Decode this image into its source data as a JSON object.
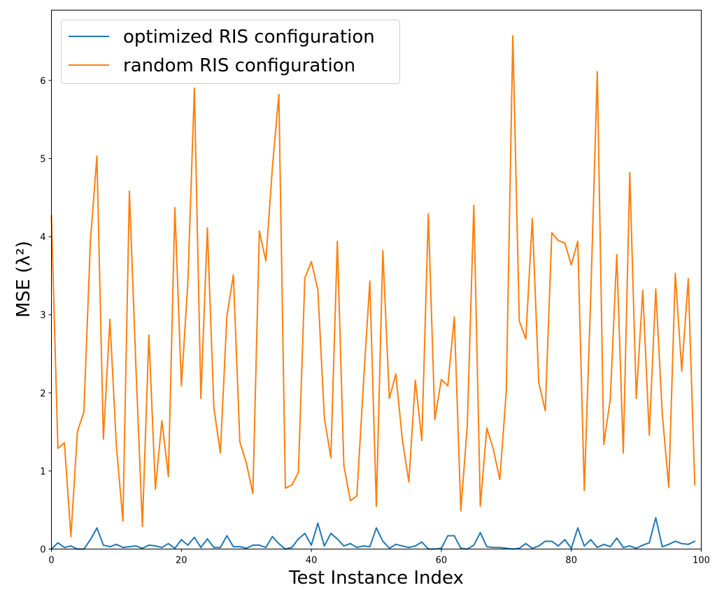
{
  "chart_data": {
    "type": "line",
    "title": "",
    "xlabel": "Test Instance Index",
    "ylabel": "MSE (λ²)",
    "xlim": [
      0,
      100
    ],
    "ylim": [
      0,
      6.9
    ],
    "xticks": [
      0,
      20,
      40,
      60,
      80,
      100
    ],
    "yticks": [
      0,
      1,
      2,
      3,
      4,
      5,
      6
    ],
    "grid": false,
    "legend_position": "top-left",
    "x": [
      0,
      1,
      2,
      3,
      4,
      5,
      6,
      7,
      8,
      9,
      10,
      11,
      12,
      13,
      14,
      15,
      16,
      17,
      18,
      19,
      20,
      21,
      22,
      23,
      24,
      25,
      26,
      27,
      28,
      29,
      30,
      31,
      32,
      33,
      34,
      35,
      36,
      37,
      38,
      39,
      40,
      41,
      42,
      43,
      44,
      45,
      46,
      47,
      48,
      49,
      50,
      51,
      52,
      53,
      54,
      55,
      56,
      57,
      58,
      59,
      60,
      61,
      62,
      63,
      64,
      65,
      66,
      67,
      68,
      69,
      70,
      71,
      72,
      73,
      74,
      75,
      76,
      77,
      78,
      79,
      80,
      81,
      82,
      83,
      84,
      85,
      86,
      87,
      88,
      89,
      90,
      91,
      92,
      93,
      94,
      95,
      96,
      97,
      98,
      99
    ],
    "series": [
      {
        "name": "optimized RIS configuration",
        "color": "#1f77b4",
        "values": [
          0.0,
          0.08,
          0.02,
          0.04,
          0.0,
          0.0,
          0.12,
          0.27,
          0.05,
          0.03,
          0.06,
          0.02,
          0.03,
          0.04,
          0.01,
          0.05,
          0.04,
          0.02,
          0.07,
          0.01,
          0.12,
          0.05,
          0.15,
          0.02,
          0.13,
          0.02,
          0.02,
          0.17,
          0.03,
          0.03,
          0.01,
          0.05,
          0.05,
          0.02,
          0.16,
          0.07,
          0.0,
          0.02,
          0.13,
          0.2,
          0.05,
          0.33,
          0.04,
          0.2,
          0.13,
          0.04,
          0.07,
          0.02,
          0.04,
          0.03,
          0.27,
          0.1,
          0.01,
          0.06,
          0.04,
          0.02,
          0.04,
          0.09,
          0.0,
          0.0,
          0.01,
          0.17,
          0.17,
          0.01,
          0.0,
          0.05,
          0.21,
          0.03,
          0.02,
          0.02,
          0.01,
          0.0,
          0.01,
          0.07,
          0.01,
          0.04,
          0.1,
          0.1,
          0.04,
          0.12,
          0.01,
          0.27,
          0.04,
          0.12,
          0.02,
          0.06,
          0.03,
          0.14,
          0.02,
          0.04,
          0.01,
          0.05,
          0.08,
          0.4,
          0.03,
          0.06,
          0.1,
          0.07,
          0.06,
          0.1
        ]
      },
      {
        "name": "random RIS configuration",
        "color": "#ff7f0e",
        "values": [
          4.27,
          1.29,
          1.36,
          0.16,
          1.5,
          1.76,
          3.94,
          5.03,
          1.41,
          2.94,
          1.32,
          0.36,
          4.58,
          2.34,
          0.29,
          2.74,
          0.77,
          1.64,
          0.93,
          4.37,
          2.09,
          3.42,
          5.9,
          1.93,
          4.11,
          1.81,
          1.23,
          2.98,
          3.51,
          1.37,
          1.1,
          0.71,
          4.07,
          3.69,
          4.88,
          5.82,
          0.78,
          0.82,
          0.98,
          3.47,
          3.68,
          3.32,
          1.68,
          1.17,
          3.94,
          1.07,
          0.62,
          0.68,
          2.1,
          3.43,
          0.55,
          3.82,
          1.93,
          2.24,
          1.4,
          0.86,
          2.16,
          1.39,
          4.29,
          1.66,
          2.17,
          2.09,
          2.97,
          0.49,
          1.59,
          4.4,
          0.55,
          1.55,
          1.28,
          0.89,
          2.02,
          6.57,
          2.92,
          2.69,
          4.23,
          2.13,
          1.77,
          4.05,
          3.95,
          3.92,
          3.64,
          3.94,
          0.75,
          3.25,
          6.11,
          1.34,
          1.92,
          3.77,
          1.23,
          4.82,
          1.93,
          3.31,
          1.46,
          3.33,
          1.73,
          0.79,
          3.53,
          2.28,
          3.46,
          0.82
        ]
      }
    ]
  }
}
